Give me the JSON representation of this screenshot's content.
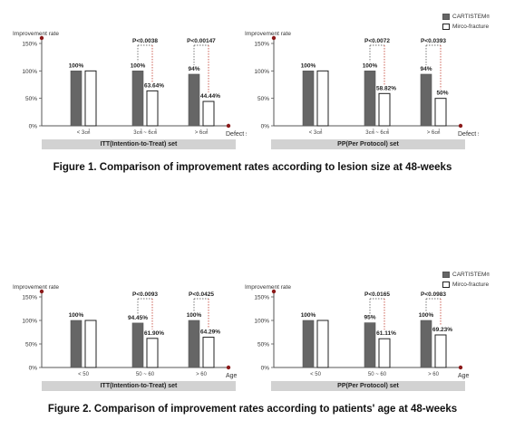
{
  "legend": {
    "items": [
      {
        "label": "CARTISTEM",
        "sup": "®",
        "color": "#6b6b6b"
      },
      {
        "label": "Mirco-fracture",
        "color": "#ffffff"
      }
    ]
  },
  "figure1": {
    "caption": "Figure 1. Comparison of improvement rates according to lesion size at 48-weeks"
  },
  "figure2": {
    "caption": "Figure 2. Comparison of improvement rates according to patients' age at 48-weeks"
  },
  "chart_data": [
    {
      "type": "bar",
      "ylabel": "Improvement rate",
      "xlabel": "Defect size",
      "set_label": "ITT(Intention-to-Treat) set",
      "ylim": [
        0,
        150
      ],
      "yticks": [
        "0%",
        "50%",
        "100%",
        "150%"
      ],
      "categories": [
        "< 3㎠",
        "3㎠ ~ 6㎠",
        "> 6㎠"
      ],
      "series": [
        {
          "name": "CARTISTEM",
          "values": [
            100,
            100,
            94
          ],
          "labels": [
            "100%",
            "100%",
            "94%"
          ]
        },
        {
          "name": "Mirco-fracture",
          "values": [
            100,
            63.64,
            44.44
          ],
          "labels": [
            "",
            "63.64%",
            "44.44%"
          ]
        }
      ],
      "pvalues": [
        "",
        "P<0.0038",
        "P<0.00147"
      ]
    },
    {
      "type": "bar",
      "ylabel": "Improvement rate",
      "xlabel": "Defect size",
      "set_label": "PP(Per Protocol) set",
      "ylim": [
        0,
        150
      ],
      "yticks": [
        "0%",
        "50%",
        "100%",
        "150%"
      ],
      "categories": [
        "< 3㎠",
        "3㎠ ~ 6㎠",
        "> 6㎠"
      ],
      "series": [
        {
          "name": "CARTISTEM",
          "values": [
            100,
            100,
            94
          ],
          "labels": [
            "100%",
            "100%",
            "94%"
          ]
        },
        {
          "name": "Mirco-fracture",
          "values": [
            100,
            58.82,
            50
          ],
          "labels": [
            "",
            "58.82%",
            "50%"
          ]
        }
      ],
      "pvalues": [
        "",
        "P<0.0072",
        "P<0.0393"
      ]
    },
    {
      "type": "bar",
      "ylabel": "Improvement rate",
      "xlabel": "Age",
      "set_label": "ITT(Intention-to-Treat) set",
      "ylim": [
        0,
        150
      ],
      "yticks": [
        "0%",
        "50%",
        "100%",
        "150%"
      ],
      "categories": [
        "< 50",
        "50 ~ 60",
        "> 60"
      ],
      "series": [
        {
          "name": "CARTISTEM",
          "values": [
            100,
            94.45,
            100
          ],
          "labels": [
            "100%",
            "94.45%",
            "100%"
          ]
        },
        {
          "name": "Mirco-fracture",
          "values": [
            100,
            61.9,
            64.29
          ],
          "labels": [
            "",
            "61.90%",
            "64.29%"
          ]
        }
      ],
      "pvalues": [
        "",
        "P<0.0093",
        "P<0.0425"
      ]
    },
    {
      "type": "bar",
      "ylabel": "Improvement rate",
      "xlabel": "Age",
      "set_label": "PP(Per Protocol) set",
      "ylim": [
        0,
        150
      ],
      "yticks": [
        "0%",
        "50%",
        "100%",
        "150%"
      ],
      "categories": [
        "< 50",
        "50 ~ 60",
        "> 60"
      ],
      "series": [
        {
          "name": "CARTISTEM",
          "values": [
            100,
            95,
            100
          ],
          "labels": [
            "100%",
            "95%",
            "100%"
          ]
        },
        {
          "name": "Mirco-fracture",
          "values": [
            100,
            61.11,
            69.23
          ],
          "labels": [
            "",
            "61.11%",
            "69.23%"
          ]
        }
      ],
      "pvalues": [
        "",
        "P<0.0165",
        "P<0.0983"
      ]
    }
  ]
}
